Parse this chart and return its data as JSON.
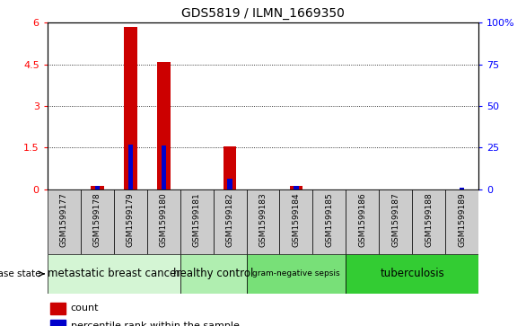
{
  "title": "GDS5819 / ILMN_1669350",
  "samples": [
    "GSM1599177",
    "GSM1599178",
    "GSM1599179",
    "GSM1599180",
    "GSM1599181",
    "GSM1599182",
    "GSM1599183",
    "GSM1599184",
    "GSM1599185",
    "GSM1599186",
    "GSM1599187",
    "GSM1599188",
    "GSM1599189"
  ],
  "count": [
    0,
    0.12,
    5.85,
    4.6,
    0,
    1.55,
    0,
    0.12,
    0,
    0,
    0,
    0,
    0
  ],
  "percentile_pct": [
    0,
    2.0,
    27.0,
    26.0,
    0,
    6.5,
    0,
    2.0,
    0,
    0,
    0,
    0,
    0.8
  ],
  "groups": [
    {
      "label": "metastatic breast cancer",
      "start": 0,
      "end": 4,
      "color": "#d4f5d4"
    },
    {
      "label": "healthy control",
      "start": 4,
      "end": 6,
      "color": "#b0eeb0"
    },
    {
      "label": "gram-negative sepsis",
      "start": 6,
      "end": 9,
      "color": "#78e078"
    },
    {
      "label": "tuberculosis",
      "start": 9,
      "end": 13,
      "color": "#33cc33"
    }
  ],
  "ylim_left": [
    0,
    6
  ],
  "ylim_right": [
    0,
    100
  ],
  "yticks_left": [
    0,
    1.5,
    3.0,
    4.5,
    6.0
  ],
  "ytick_labels_left": [
    "0",
    "1.5",
    "3",
    "4.5",
    "6"
  ],
  "yticks_right": [
    0,
    25,
    50,
    75,
    100
  ],
  "ytick_labels_right": [
    "0",
    "25",
    "50",
    "75",
    "100%"
  ],
  "bar_color_red": "#cc0000",
  "bar_color_blue": "#0000cc",
  "bg_color": "#ffffff",
  "sample_cell_color": "#cccccc",
  "legend_count": "count",
  "legend_pct": "percentile rank within the sample",
  "disease_state_label": "disease state"
}
